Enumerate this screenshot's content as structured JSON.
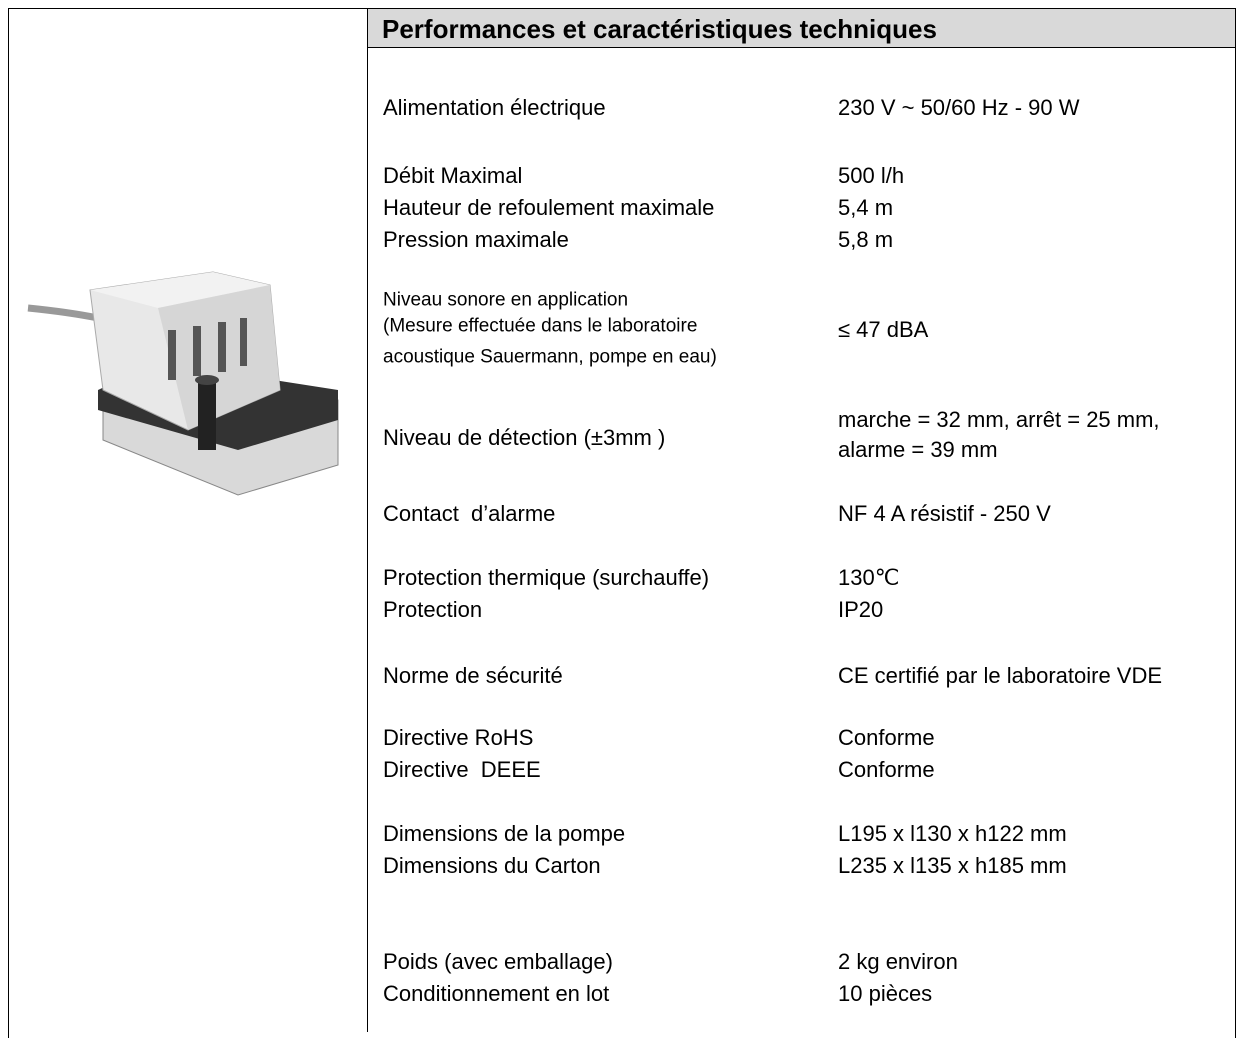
{
  "header": {
    "title": "Performances et caractéristiques techniques"
  },
  "rows": [
    {
      "label": [
        "Alimentation électrique"
      ],
      "value": [
        "230 V ~ 50/60 Hz - 90 W"
      ]
    },
    {
      "label": [
        "Débit Maximal"
      ],
      "value": [
        "500 l/h"
      ]
    },
    {
      "label": [
        "Hauteur de refoulement maximale"
      ],
      "value": [
        "5,4 m"
      ]
    },
    {
      "label": [
        "Pression maximale"
      ],
      "value": [
        "5,8 m"
      ]
    },
    {
      "label": [
        "Niveau sonore en application",
        "(Mesure effectuée dans le laboratoire",
        "acoustique Sauermann, pompe en eau)"
      ],
      "value": [
        "≤ 47 dBA"
      ]
    },
    {
      "label": [
        "Niveau de détection (±3mm )"
      ],
      "value": [
        "marche = 32 mm, arrêt = 25 mm,",
        "alarme = 39 mm"
      ]
    },
    {
      "label": [
        "Contact  d’alarme"
      ],
      "value": [
        "NF 4 A résistif - 250 V"
      ]
    },
    {
      "label": [
        "Protection thermique (surchauffe)"
      ],
      "value": [
        "130℃"
      ]
    },
    {
      "label": [
        "Protection"
      ],
      "value": [
        "IP20"
      ]
    },
    {
      "label": [
        "Norme de sécurité"
      ],
      "value": [
        "CE certifié par le laboratoire VDE"
      ]
    },
    {
      "label": [
        "Directive RoHS"
      ],
      "value": [
        "Conforme"
      ]
    },
    {
      "label": [
        "Directive  DEEE"
      ],
      "value": [
        "Conforme"
      ]
    },
    {
      "label": [
        "Dimensions de la pompe"
      ],
      "value": [
        "L195 x l130 x h122 mm"
      ]
    },
    {
      "label": [
        "Dimensions du Carton"
      ],
      "value": [
        "L235 x l135 x h185 mm"
      ]
    },
    {
      "label": [
        "Poids (avec emballage)"
      ],
      "value": [
        "2 kg environ"
      ]
    },
    {
      "label": [
        "Conditionnement en lot"
      ],
      "value": [
        "10 pièces"
      ]
    }
  ]
}
